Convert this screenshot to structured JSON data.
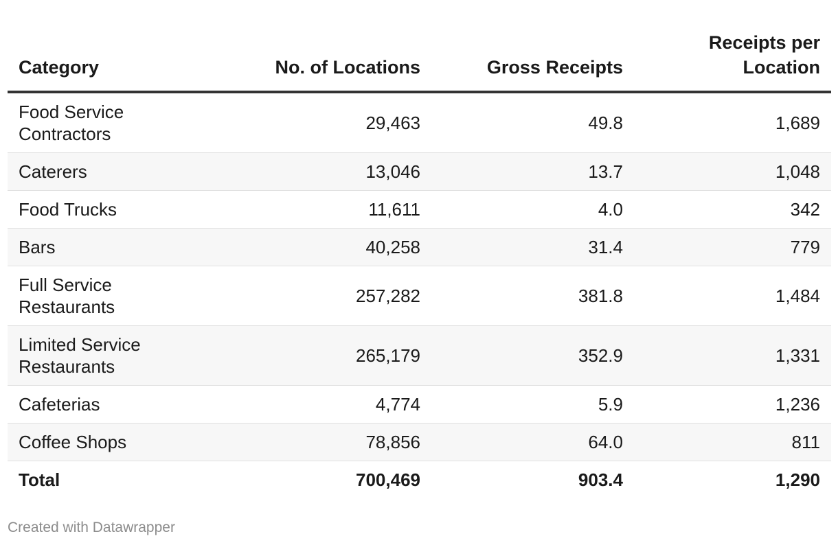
{
  "chart_data": {
    "type": "table",
    "columns": [
      "Category",
      "No. of Locations",
      "Gross Receipts",
      "Receipts per Location"
    ],
    "rows": [
      {
        "category": "Food Service Contractors",
        "locations": "29,463",
        "gross_receipts": "49.8",
        "receipts_per_location": "1,689"
      },
      {
        "category": "Caterers",
        "locations": "13,046",
        "gross_receipts": "13.7",
        "receipts_per_location": "1,048"
      },
      {
        "category": "Food Trucks",
        "locations": "11,611",
        "gross_receipts": "4.0",
        "receipts_per_location": "342"
      },
      {
        "category": "Bars",
        "locations": "40,258",
        "gross_receipts": "31.4",
        "receipts_per_location": "779"
      },
      {
        "category": "Full Service Restaurants",
        "locations": "257,282",
        "gross_receipts": "381.8",
        "receipts_per_location": "1,484"
      },
      {
        "category": "Limited Service Restaurants",
        "locations": "265,179",
        "gross_receipts": "352.9",
        "receipts_per_location": "1,331"
      },
      {
        "category": "Cafeterias",
        "locations": "4,774",
        "gross_receipts": "5.9",
        "receipts_per_location": "1,236"
      },
      {
        "category": "Coffee Shops",
        "locations": "78,856",
        "gross_receipts": "64.0",
        "receipts_per_location": "811"
      }
    ],
    "total": {
      "category": "Total",
      "locations": "700,469",
      "gross_receipts": "903.4",
      "receipts_per_location": "1,290"
    }
  },
  "footer": {
    "credit": "Created with Datawrapper"
  },
  "colors": {
    "header_rule": "#333333",
    "row_shade": "#f7f7f7",
    "row_rule": "#e0e0e0",
    "footer_text": "#8c8c8c"
  }
}
